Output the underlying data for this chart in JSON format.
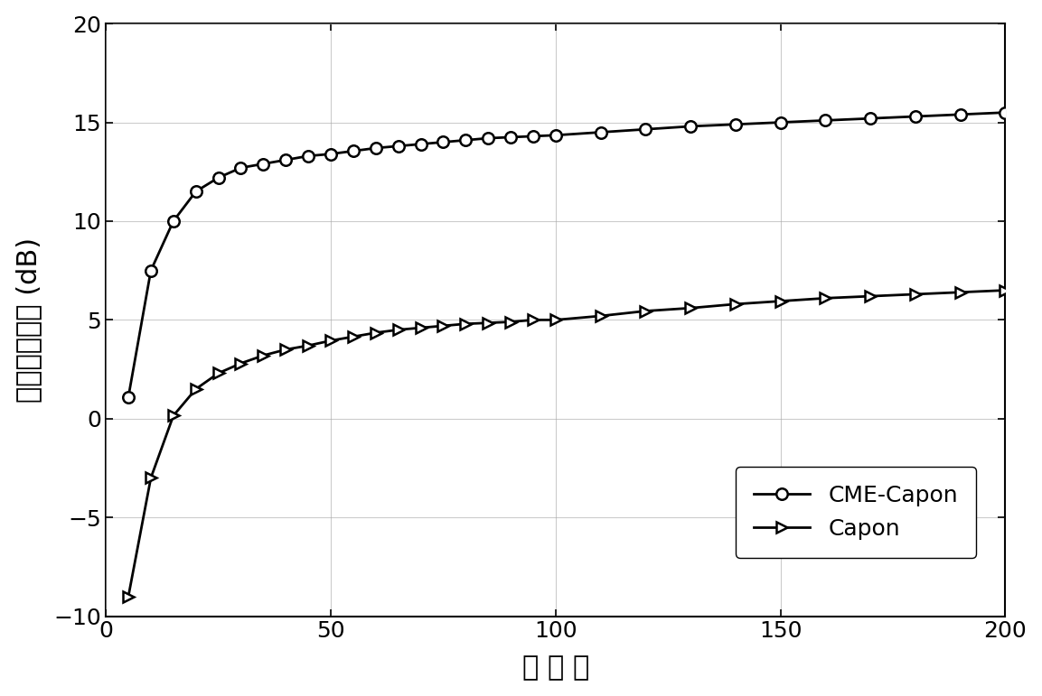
{
  "title": "",
  "xlabel": "快 拍 数",
  "ylabel": "输出信干噪比 (dB)",
  "xlim": [
    0,
    200
  ],
  "ylim": [
    -10,
    20
  ],
  "xticks": [
    0,
    50,
    100,
    150,
    200
  ],
  "yticks": [
    -10,
    -5,
    0,
    5,
    10,
    15,
    20
  ],
  "background_color": "#ffffff",
  "grid_color": "#aaaaaa",
  "line_color": "#000000",
  "cme_capon_x": [
    5,
    10,
    15,
    20,
    25,
    30,
    35,
    40,
    45,
    50,
    55,
    60,
    65,
    70,
    75,
    80,
    85,
    90,
    95,
    100,
    110,
    120,
    130,
    140,
    150,
    160,
    170,
    180,
    190,
    200
  ],
  "cme_capon_y": [
    1.1,
    7.5,
    10.0,
    11.5,
    12.2,
    12.7,
    12.9,
    13.1,
    13.3,
    13.4,
    13.55,
    13.7,
    13.8,
    13.9,
    14.0,
    14.1,
    14.2,
    14.25,
    14.3,
    14.35,
    14.5,
    14.65,
    14.8,
    14.9,
    15.0,
    15.1,
    15.2,
    15.3,
    15.4,
    15.5
  ],
  "capon_x": [
    5,
    10,
    15,
    20,
    25,
    30,
    35,
    40,
    45,
    50,
    55,
    60,
    65,
    70,
    75,
    80,
    85,
    90,
    95,
    100,
    110,
    120,
    130,
    140,
    150,
    160,
    170,
    180,
    190,
    200
  ],
  "capon_y": [
    -9.0,
    -3.0,
    0.15,
    1.5,
    2.3,
    2.8,
    3.2,
    3.5,
    3.7,
    3.95,
    4.15,
    4.35,
    4.5,
    4.6,
    4.7,
    4.8,
    4.85,
    4.9,
    5.0,
    5.0,
    5.2,
    5.45,
    5.6,
    5.8,
    5.95,
    6.1,
    6.2,
    6.3,
    6.4,
    6.5
  ],
  "legend_labels": [
    "CME-Capon",
    "Capon"
  ],
  "fontsize_axis_label": 22,
  "fontsize_tick": 18,
  "fontsize_legend": 18,
  "marker_size_circle": 9,
  "marker_size_triangle": 9,
  "linewidth": 2.0
}
